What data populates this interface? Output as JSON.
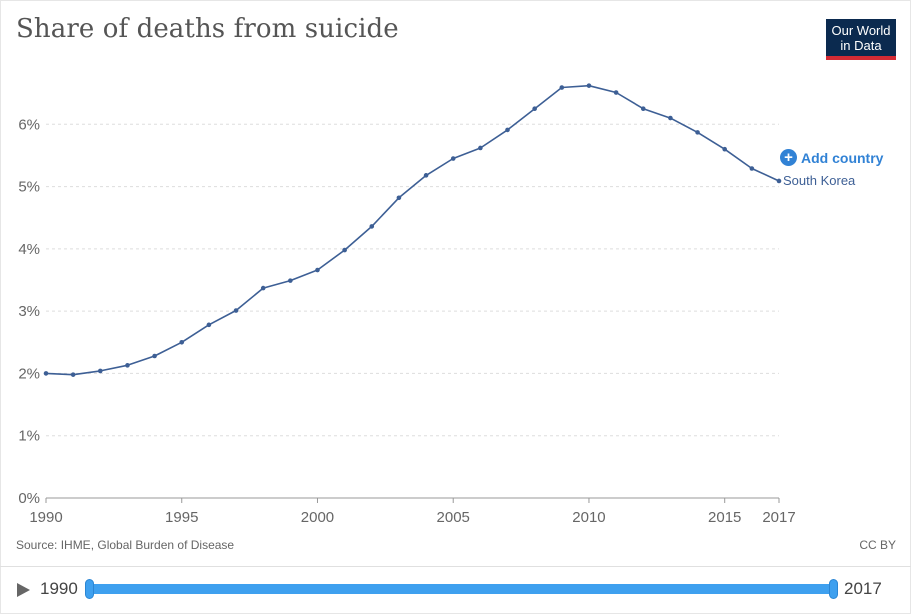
{
  "title": "Share of deaths from suicide",
  "logo": {
    "line1": "Our World",
    "line2": "in Data"
  },
  "add_country_label": "Add country",
  "source": "Source: IHME, Global Burden of Disease",
  "license": "CC BY",
  "timeline": {
    "start_label": "1990",
    "end_label": "2017"
  },
  "colors": {
    "series": "#3d5f95",
    "accent": "#3182d5",
    "grid": "#dddddd",
    "slider": "#3ea0ef"
  },
  "chart_data": {
    "type": "line",
    "title": "Share of deaths from suicide",
    "xlabel": "",
    "ylabel": "",
    "xlim": [
      1990,
      2017
    ],
    "ylim": [
      0,
      7
    ],
    "y_ticks": [
      0,
      1,
      2,
      3,
      4,
      5,
      6
    ],
    "y_tick_labels": [
      "0%",
      "1%",
      "2%",
      "3%",
      "4%",
      "5%",
      "6%"
    ],
    "x_ticks": [
      1990,
      1995,
      2000,
      2005,
      2010,
      2015,
      2017
    ],
    "x_tick_labels": [
      "1990",
      "1995",
      "2000",
      "2005",
      "2010",
      "2015",
      "2017"
    ],
    "grid": "horizontal dashed",
    "series": [
      {
        "name": "South Korea",
        "x": [
          1990,
          1991,
          1992,
          1993,
          1994,
          1995,
          1996,
          1997,
          1998,
          1999,
          2000,
          2001,
          2002,
          2003,
          2004,
          2005,
          2006,
          2007,
          2008,
          2009,
          2010,
          2011,
          2012,
          2013,
          2014,
          2015,
          2016,
          2017
        ],
        "values": [
          2.0,
          1.98,
          2.04,
          2.13,
          2.28,
          2.5,
          2.78,
          3.01,
          3.37,
          3.49,
          3.66,
          3.98,
          4.36,
          4.82,
          5.18,
          5.45,
          5.62,
          5.91,
          6.25,
          6.59,
          6.62,
          6.51,
          6.25,
          6.1,
          5.87,
          5.6,
          5.29,
          5.09
        ]
      }
    ]
  }
}
